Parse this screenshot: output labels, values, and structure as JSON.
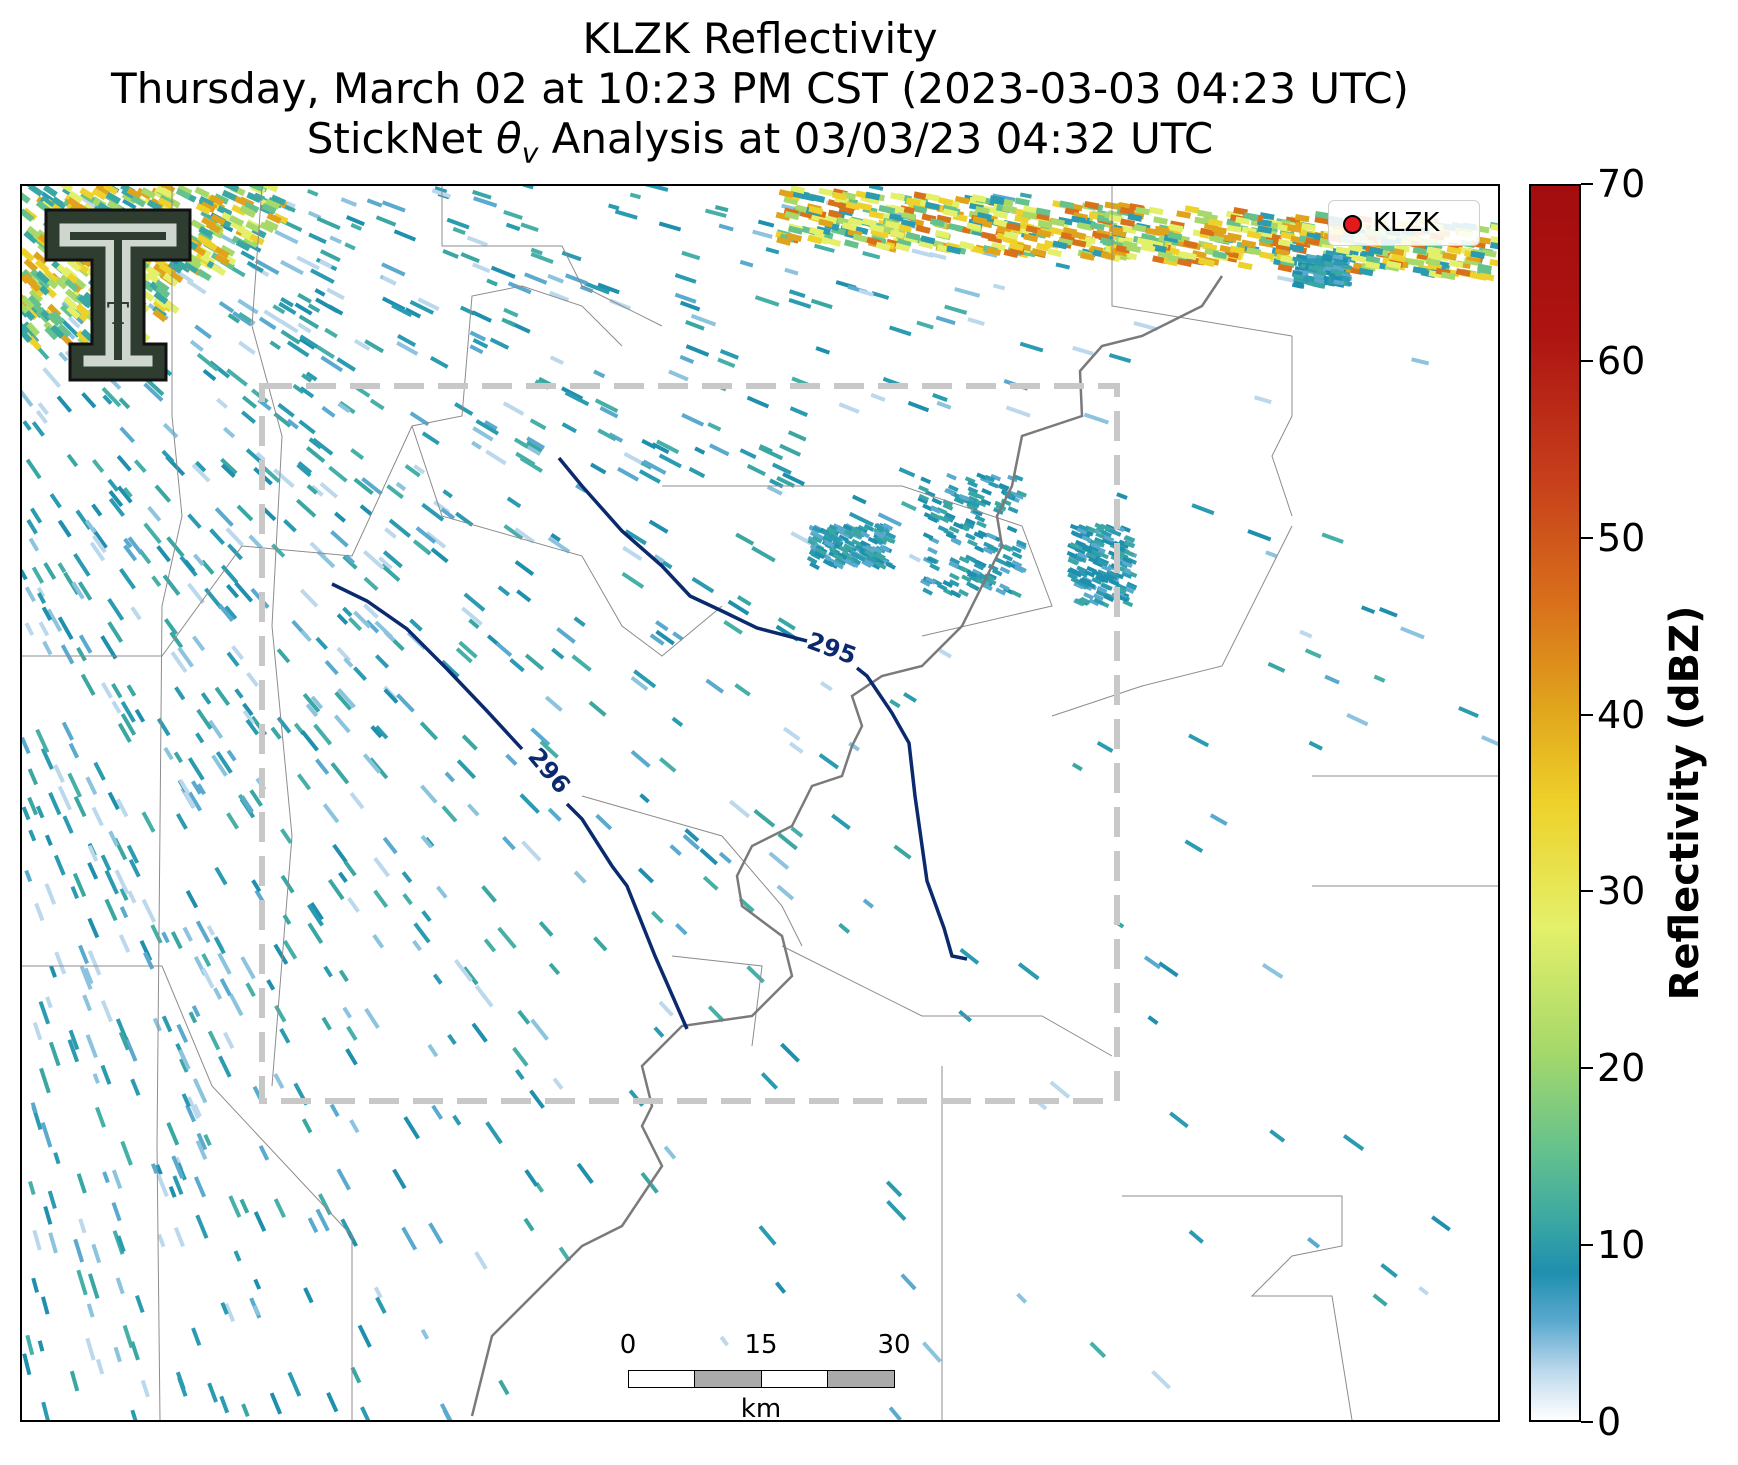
{
  "title": {
    "line1": "KLZK Reflectivity",
    "line2": "Thursday, March 02 at 10:23 PM CST (2023-03-03 04:23 UTC)",
    "line3_prefix": "StickNet ",
    "line3_symbol": "θ",
    "line3_subscript": "v",
    "line3_suffix": " Analysis at 03/03/23 04:32 UTC"
  },
  "legend": {
    "label": "KLZK",
    "marker_color": "#e31a1c"
  },
  "colorbar": {
    "label": "Reflectivity (dBZ)",
    "min": 0,
    "max": 70,
    "ticks": [
      "0",
      "10",
      "20",
      "30",
      "40",
      "50",
      "60",
      "70"
    ],
    "colors": [
      "#ffffff",
      "#5aa9cf",
      "#1f8fae",
      "#66c28c",
      "#a6d96a",
      "#e4f06a",
      "#eed12a",
      "#d9711b",
      "#a30d0d"
    ]
  },
  "contours": [
    {
      "label": "295",
      "color": "#0b2a6e"
    },
    {
      "label": "296",
      "color": "#0b2a6e"
    }
  ],
  "scalebar": {
    "ticks": [
      "0",
      "15",
      "30"
    ],
    "unit": "km"
  },
  "logo": {
    "letter": "T",
    "icon": "texas-tech-double-t-logo"
  },
  "colors": {
    "county_lines": "#8c8c8c",
    "river": "#7a7a7a",
    "analysis_box": "#c8c8c8",
    "echo_main": "#2a9bb0"
  }
}
